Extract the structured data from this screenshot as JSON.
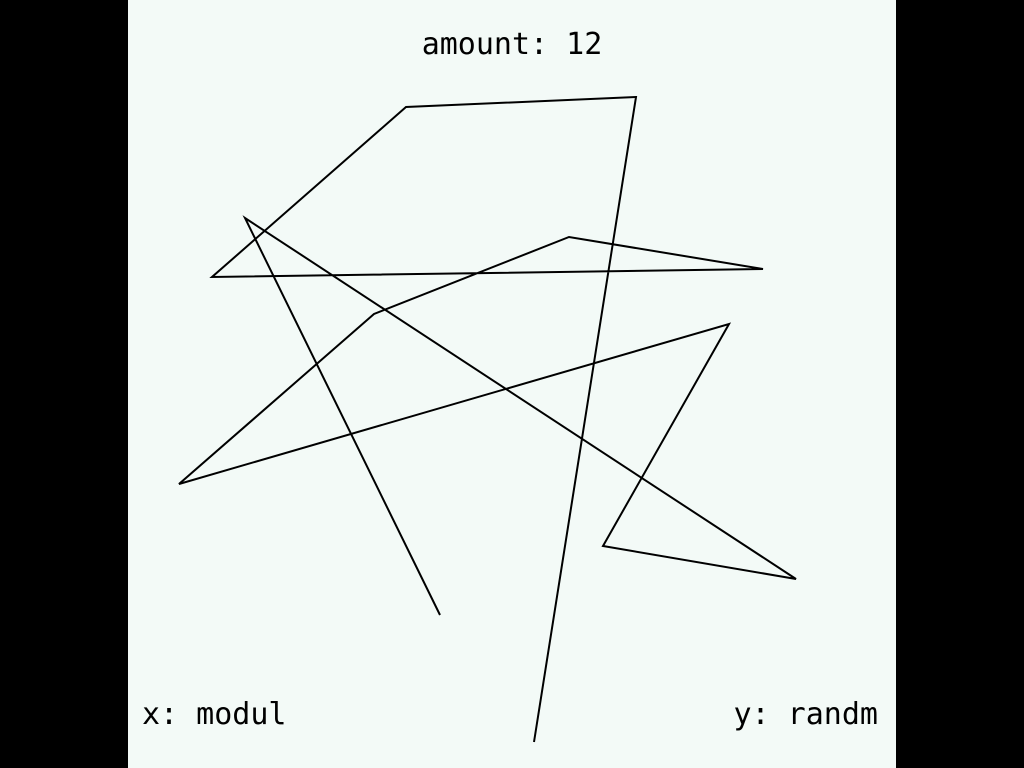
{
  "amount": {
    "text": "amount: 12",
    "value": 12
  },
  "x_mode": {
    "text": "x: modul"
  },
  "y_mode": {
    "text": "y: randm"
  },
  "colors": {
    "background": "#f3faf7",
    "frame": "#000000",
    "line": "#000000"
  }
}
